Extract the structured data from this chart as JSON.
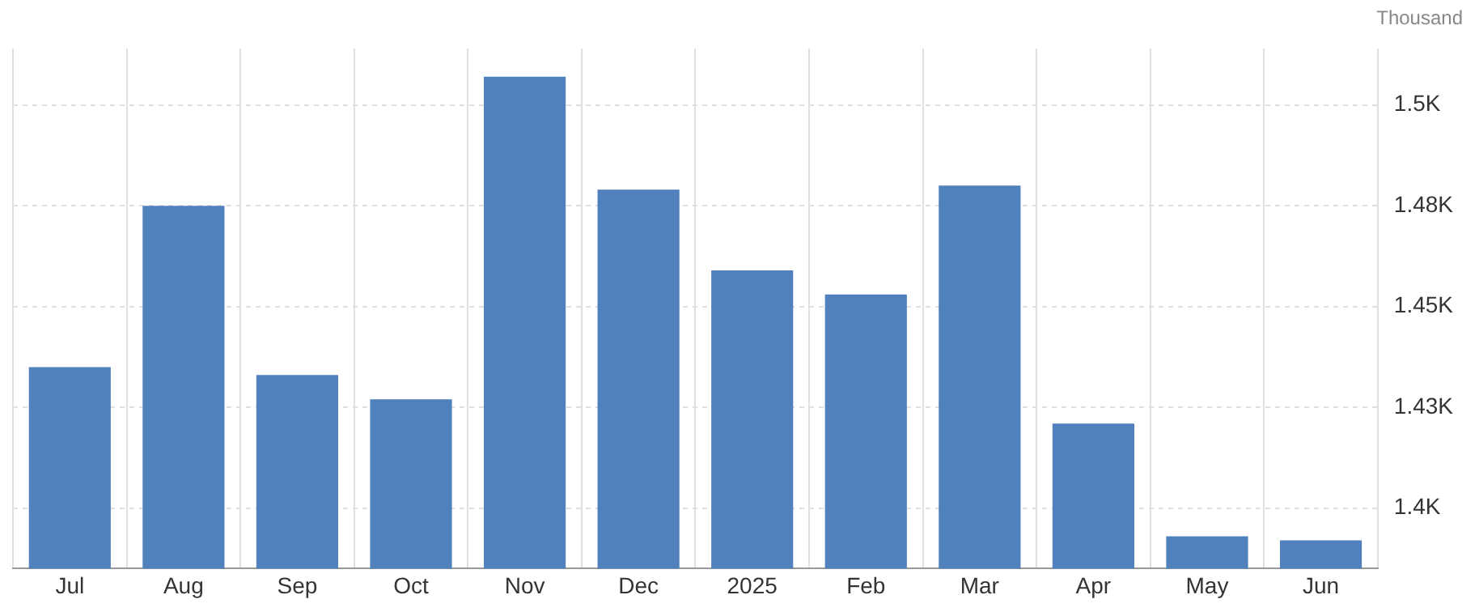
{
  "chart_data": {
    "type": "bar",
    "categories": [
      "Jul",
      "Aug",
      "Sep",
      "Oct",
      "Nov",
      "Dec",
      "2025",
      "Feb",
      "Mar",
      "Apr",
      "May",
      "Jun"
    ],
    "values": [
      1435,
      1475,
      1433,
      1427,
      1507,
      1479,
      1459,
      1453,
      1480,
      1421,
      1393,
      1392
    ],
    "color": "#5181bd",
    "ylim": [
      1385,
      1514
    ],
    "yticks": [
      {
        "value": 1400,
        "label": "1.4K"
      },
      {
        "value": 1425,
        "label": "1.43K"
      },
      {
        "value": 1450,
        "label": "1.45K"
      },
      {
        "value": 1475,
        "label": "1.48K"
      },
      {
        "value": 1500,
        "label": "1.5K"
      }
    ],
    "annotations": [
      "Thousand"
    ],
    "grid": true,
    "legend": false
  }
}
